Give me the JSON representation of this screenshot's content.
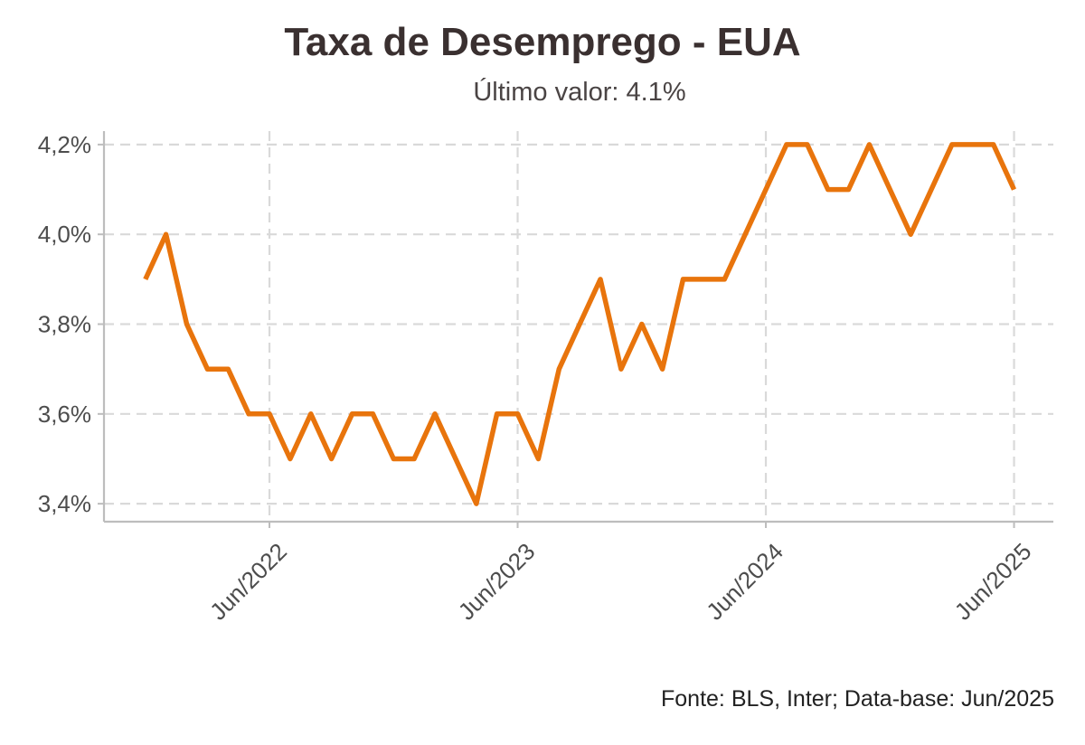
{
  "title": "Taxa de Desemprego - EUA",
  "subtitle": "Último valor: 4.1%",
  "caption": "Fonte: BLS, Inter; Data-base: Jun/2025",
  "colors": {
    "line": "#E8740C",
    "grid": "#d9d9d9",
    "axis": "#bdbdbd",
    "text": "#4d4d4d"
  },
  "chart_data": {
    "type": "line",
    "title": "Taxa de Desemprego - EUA",
    "subtitle": "Último valor: 4.1%",
    "xlabel": "",
    "ylabel": "",
    "grid": true,
    "ylim": [
      3.36,
      4.23
    ],
    "yticks": [
      3.4,
      3.6,
      3.8,
      4.0,
      4.2
    ],
    "ytick_labels": [
      "3,4%",
      "3,6%",
      "3,8%",
      "4,0%",
      "4,2%"
    ],
    "xticks": [
      "2022-06",
      "2023-06",
      "2024-06",
      "2025-06"
    ],
    "xtick_labels": [
      "Jun/2022",
      "Jun/2023",
      "Jun/2024",
      "Jun/2025"
    ],
    "x": [
      "2021-12",
      "2022-01",
      "2022-02",
      "2022-03",
      "2022-04",
      "2022-05",
      "2022-06",
      "2022-07",
      "2022-08",
      "2022-09",
      "2022-10",
      "2022-11",
      "2022-12",
      "2023-01",
      "2023-02",
      "2023-03",
      "2023-04",
      "2023-05",
      "2023-06",
      "2023-07",
      "2023-08",
      "2023-09",
      "2023-10",
      "2023-11",
      "2023-12",
      "2024-01",
      "2024-02",
      "2024-03",
      "2024-04",
      "2024-05",
      "2024-06",
      "2024-07",
      "2024-08",
      "2024-09",
      "2024-10",
      "2024-11",
      "2024-12",
      "2025-01",
      "2025-02",
      "2025-03",
      "2025-04",
      "2025-05",
      "2025-06"
    ],
    "series": [
      {
        "values": [
          3.9,
          4.0,
          3.8,
          3.7,
          3.7,
          3.6,
          3.6,
          3.5,
          3.6,
          3.5,
          3.6,
          3.6,
          3.5,
          3.5,
          3.6,
          3.5,
          3.4,
          3.6,
          3.6,
          3.5,
          3.7,
          3.8,
          3.9,
          3.7,
          3.8,
          3.7,
          3.9,
          3.9,
          3.9,
          4.0,
          4.1,
          4.2,
          4.2,
          4.1,
          4.1,
          4.2,
          4.1,
          4.0,
          4.1,
          4.2,
          4.2,
          4.2,
          4.1
        ]
      }
    ]
  }
}
